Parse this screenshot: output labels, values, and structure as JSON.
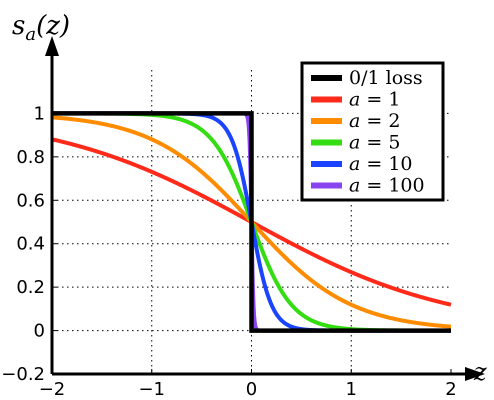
{
  "chart_data": {
    "type": "line",
    "title": "",
    "ylabel": "s_a(z)",
    "xlabel": "z",
    "xlim": [
      -2,
      2
    ],
    "ylim": [
      -0.2,
      1.2
    ],
    "xticks": [
      -2,
      -1,
      0,
      1,
      2
    ],
    "xtick_labels": [
      "−2",
      "−1",
      "0",
      "1",
      "2"
    ],
    "yticks": [
      -0.2,
      0,
      0.2,
      0.4,
      0.6,
      0.8,
      1
    ],
    "ytick_labels": [
      "−0.2",
      "0",
      "0.2",
      "0.4",
      "0.6",
      "0.8",
      "1"
    ],
    "grid": true,
    "legend_position": "top-right",
    "x": [
      -2,
      -1.5,
      -1,
      -0.5,
      -0.2,
      -0.1,
      -0.05,
      0,
      0.05,
      0.1,
      0.2,
      0.5,
      1,
      1.5,
      2
    ],
    "series": [
      {
        "name": "0/1 loss",
        "label_parts": [
          "0/1 loss"
        ],
        "color": "#000000",
        "step": true,
        "points": [
          [
            -2,
            1
          ],
          [
            0,
            1
          ],
          [
            0,
            0
          ],
          [
            2,
            0
          ]
        ]
      },
      {
        "name": "a = 1",
        "label_parts": [
          "a",
          " = 1"
        ],
        "color": "#ff2a1a",
        "values": [
          0.881,
          0.818,
          0.731,
          0.622,
          0.55,
          0.525,
          0.512,
          0.5,
          0.488,
          0.475,
          0.45,
          0.378,
          0.269,
          0.182,
          0.119
        ]
      },
      {
        "name": "a = 2",
        "label_parts": [
          "a",
          " = 2"
        ],
        "color": "#ff8c00",
        "values": [
          0.982,
          0.953,
          0.881,
          0.731,
          0.599,
          0.55,
          0.525,
          0.5,
          0.475,
          0.45,
          0.401,
          0.269,
          0.119,
          0.047,
          0.018
        ]
      },
      {
        "name": "a = 5",
        "label_parts": [
          "a",
          " = 5"
        ],
        "color": "#33dd11",
        "values": [
          1.0,
          0.999,
          0.993,
          0.924,
          0.731,
          0.622,
          0.562,
          0.5,
          0.438,
          0.378,
          0.269,
          0.076,
          0.007,
          0.001,
          0.0
        ]
      },
      {
        "name": "a = 10",
        "label_parts": [
          "a",
          " = 10"
        ],
        "color": "#1a44ff",
        "values": [
          1.0,
          1.0,
          1.0,
          0.993,
          0.881,
          0.731,
          0.622,
          0.5,
          0.378,
          0.269,
          0.119,
          0.007,
          0.0,
          0.0,
          0.0
        ]
      },
      {
        "name": "a = 100",
        "label_parts": [
          "a",
          " = 100"
        ],
        "color": "#8844ee",
        "values": [
          1.0,
          1.0,
          1.0,
          1.0,
          1.0,
          1.0,
          0.993,
          0.5,
          0.007,
          0.0,
          0.0,
          0.0,
          0.0,
          0.0,
          0.0
        ]
      }
    ]
  }
}
